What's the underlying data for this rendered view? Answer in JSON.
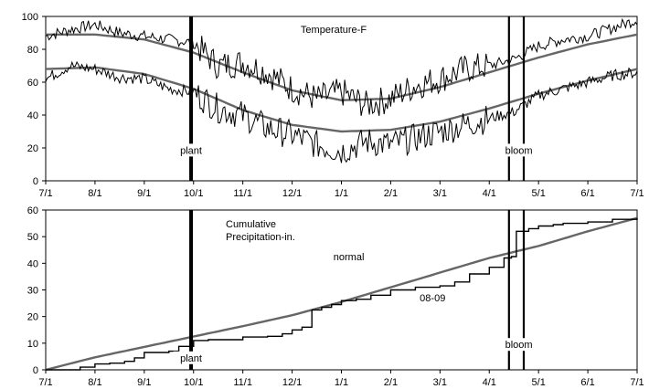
{
  "chart_data": [
    {
      "type": "line",
      "title": "Temperature-F",
      "xlabel": "",
      "ylabel": "",
      "ylim": [
        0,
        100
      ],
      "y_ticks": [
        0,
        20,
        40,
        60,
        80,
        100
      ],
      "x_tick_labels": [
        "7/1",
        "8/1",
        "9/1",
        "10/1",
        "11/1",
        "12/1",
        "1/1",
        "2/1",
        "3/1",
        "4/1",
        "5/1",
        "6/1",
        "7/1"
      ],
      "grid": false,
      "series": [
        {
          "kind": "normal_max",
          "color": "#666666",
          "x_month": [
            0,
            1,
            2,
            3,
            4,
            5,
            6,
            7,
            8,
            9,
            10,
            11,
            12
          ],
          "values": [
            89,
            89,
            86,
            78,
            66,
            55,
            49,
            50,
            57,
            66,
            75,
            83,
            89
          ]
        },
        {
          "kind": "normal_min",
          "color": "#666666",
          "x_month": [
            0,
            1,
            2,
            3,
            4,
            5,
            6,
            7,
            8,
            9,
            10,
            11,
            12
          ],
          "values": [
            68,
            69,
            65,
            56,
            43,
            34,
            30,
            31,
            36,
            44,
            53,
            61,
            68
          ]
        },
        {
          "kind": "daily_max",
          "color": "#000000",
          "x_month": [
            0,
            0.5,
            1,
            1.5,
            2,
            2.5,
            3,
            3.5,
            4,
            4.5,
            5,
            5.5,
            6,
            6.5,
            7,
            7.5,
            8,
            8.5,
            9,
            9.5,
            10,
            10.5,
            11,
            11.5,
            12
          ],
          "values": [
            88,
            92,
            95,
            90,
            88,
            86,
            84,
            70,
            72,
            66,
            56,
            50,
            54,
            46,
            50,
            58,
            62,
            68,
            70,
            74,
            82,
            86,
            88,
            93,
            98
          ]
        },
        {
          "kind": "daily_min",
          "color": "#000000",
          "x_month": [
            0,
            0.5,
            1,
            1.5,
            2,
            2.5,
            3,
            3.5,
            4,
            4.5,
            5,
            5.5,
            6,
            6.5,
            7,
            7.5,
            8,
            8.5,
            9,
            9.5,
            10,
            10.5,
            11,
            11.5,
            12
          ],
          "values": [
            62,
            70,
            68,
            63,
            62,
            56,
            54,
            44,
            40,
            32,
            28,
            22,
            18,
            24,
            22,
            26,
            30,
            34,
            38,
            42,
            52,
            56,
            60,
            64,
            66
          ]
        }
      ],
      "annotations": [
        {
          "text": "plant",
          "x_month": 2.95,
          "y": 17
        },
        {
          "text": "bloom",
          "x_month": 9.6,
          "y": 17
        }
      ],
      "markers": [
        {
          "kind": "thick",
          "x_month": 2.95
        },
        {
          "kind": "thin",
          "x_month": 9.4
        },
        {
          "kind": "thin",
          "x_month": 9.7
        }
      ]
    },
    {
      "type": "line",
      "title": "Cumulative\nPrecipitation-in.",
      "xlabel": "",
      "ylabel": "",
      "ylim": [
        0,
        60
      ],
      "y_ticks": [
        0,
        10,
        20,
        30,
        40,
        50,
        60
      ],
      "x_tick_labels": [
        "7/1",
        "8/1",
        "9/1",
        "10/1",
        "11/1",
        "12/1",
        "1/1",
        "2/1",
        "3/1",
        "4/1",
        "5/1",
        "6/1",
        "7/1"
      ],
      "grid": false,
      "series": [
        {
          "name": "normal",
          "color": "#666666",
          "x_month": [
            0,
            1,
            2,
            3,
            4,
            5,
            6,
            7,
            8,
            9,
            10,
            11,
            12
          ],
          "values": [
            0,
            4.7,
            8.6,
            12.5,
            16.4,
            20.5,
            25.5,
            31.0,
            36.5,
            42.0,
            46.5,
            52.0,
            57.0
          ]
        },
        {
          "name": "08-09",
          "color": "#000000",
          "x_month": [
            0,
            0.7,
            1.0,
            1.3,
            1.6,
            1.8,
            2.0,
            2.5,
            2.7,
            3.0,
            3.3,
            4.0,
            4.5,
            4.8,
            5.0,
            5.2,
            5.4,
            5.6,
            5.8,
            6.0,
            6.3,
            6.6,
            7.0,
            7.5,
            8.0,
            8.3,
            8.6,
            9.0,
            9.3,
            9.45,
            9.55,
            9.8,
            10.0,
            10.3,
            10.5,
            11.0,
            11.5,
            12.0
          ],
          "values": [
            0,
            1,
            2.2,
            2.5,
            3.2,
            4.5,
            6.5,
            7,
            8.8,
            11,
            11.3,
            12.3,
            12.6,
            13.5,
            15.0,
            16.0,
            22.5,
            23.5,
            24.5,
            26.0,
            26.5,
            28.0,
            30.0,
            31.0,
            31.5,
            33.0,
            36.0,
            38.5,
            42.0,
            42.5,
            52.0,
            53.0,
            54.0,
            54.5,
            55.0,
            55.5,
            56.5,
            57.0
          ]
        }
      ],
      "annotations": [
        {
          "text": "normal",
          "x_month": 6.15,
          "y": 41.5
        },
        {
          "text": "08-09",
          "x_month": 7.85,
          "y": 26
        },
        {
          "text": "plant",
          "x_month": 2.95,
          "y": 3.5
        },
        {
          "text": "bloom",
          "x_month": 9.6,
          "y": 8.5
        }
      ],
      "markers": [
        {
          "kind": "thick",
          "x_month": 2.95
        },
        {
          "kind": "thin",
          "x_month": 9.4
        },
        {
          "kind": "thin",
          "x_month": 9.7
        }
      ]
    }
  ]
}
